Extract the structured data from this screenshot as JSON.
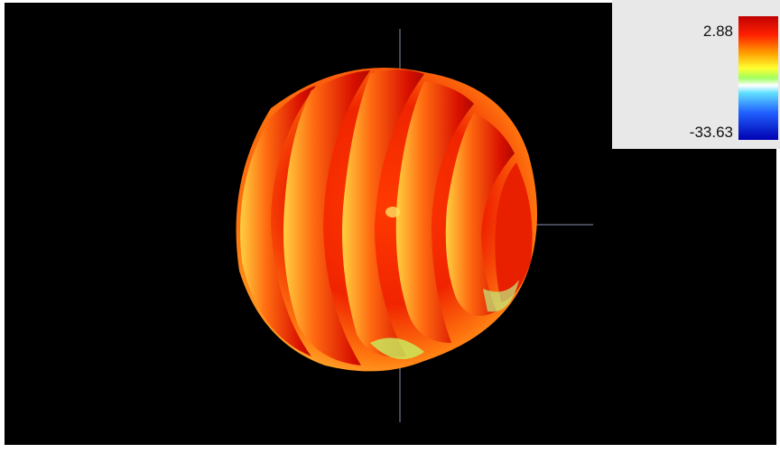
{
  "colorbar": {
    "max": "2.88",
    "min": "-33.63"
  }
}
